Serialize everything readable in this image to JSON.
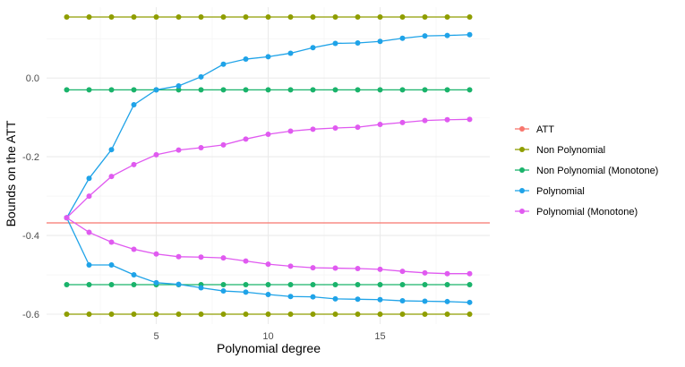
{
  "chart_data": {
    "type": "line",
    "title": "",
    "xlabel": "Polynomial degree",
    "ylabel": "Bounds on the ATT",
    "xlim": [
      0.1,
      19.9
    ],
    "ylim": [
      -0.625,
      0.18
    ],
    "x_ticks": [
      5,
      10,
      15
    ],
    "x_tick_labels": [
      "5",
      "10",
      "15"
    ],
    "y_ticks": [
      -0.6,
      -0.4,
      -0.2,
      0.0
    ],
    "y_tick_labels": [
      "-0.6",
      "-0.4",
      "-0.2",
      "0.0"
    ],
    "grid": true,
    "legend_position": "right",
    "att": {
      "name": "ATT",
      "color": "#F8766D",
      "value": -0.368
    },
    "series": [
      {
        "name": "Non Polynomial",
        "color": "#7CAE00",
        "upper": [
          0.155,
          0.155,
          0.155,
          0.155,
          0.155,
          0.155,
          0.155,
          0.155,
          0.155,
          0.155,
          0.155,
          0.155,
          0.155,
          0.155,
          0.155,
          0.155,
          0.155,
          0.155,
          0.155
        ],
        "lower": [
          -0.6,
          -0.6,
          -0.6,
          -0.6,
          -0.6,
          -0.6,
          -0.6,
          -0.6,
          -0.6,
          -0.6,
          -0.6,
          -0.6,
          -0.6,
          -0.6,
          -0.6,
          -0.6,
          -0.6,
          -0.6,
          -0.6
        ]
      },
      {
        "name": "Non Polynomial (Monotone)",
        "color": "#00BFC4",
        "upper": [
          -0.03,
          -0.03,
          -0.03,
          -0.03,
          -0.03,
          -0.03,
          -0.03,
          -0.03,
          -0.03,
          -0.03,
          -0.03,
          -0.03,
          -0.03,
          -0.03,
          -0.03,
          -0.03,
          -0.03,
          -0.03,
          -0.03
        ],
        "lower": [
          -0.525,
          -0.525,
          -0.525,
          -0.525,
          -0.525,
          -0.525,
          -0.525,
          -0.525,
          -0.525,
          -0.525,
          -0.525,
          -0.525,
          -0.525,
          -0.525,
          -0.525,
          -0.525,
          -0.525,
          -0.525,
          -0.525
        ]
      },
      {
        "name": "Polynomial",
        "color": "#1FA3E8",
        "upper": [
          -0.355,
          -0.255,
          -0.182,
          -0.068,
          -0.03,
          -0.02,
          0.003,
          0.035,
          0.048,
          0.054,
          0.063,
          0.077,
          0.088,
          0.089,
          0.093,
          0.101,
          0.107,
          0.108,
          0.11
        ],
        "lower": [
          -0.355,
          -0.475,
          -0.475,
          -0.5,
          -0.52,
          -0.524,
          -0.533,
          -0.541,
          -0.544,
          -0.55,
          -0.555,
          -0.556,
          -0.561,
          -0.562,
          -0.563,
          -0.566,
          -0.567,
          -0.568,
          -0.57
        ]
      },
      {
        "name": "Polynomial (Monotone)",
        "color": "#E05AF0",
        "upper": [
          -0.355,
          -0.3,
          -0.25,
          -0.22,
          -0.195,
          -0.183,
          -0.177,
          -0.17,
          -0.155,
          -0.143,
          -0.135,
          -0.13,
          -0.127,
          -0.125,
          -0.118,
          -0.113,
          -0.108,
          -0.106,
          -0.105
        ],
        "lower": [
          -0.355,
          -0.392,
          -0.417,
          -0.435,
          -0.447,
          -0.454,
          -0.455,
          -0.457,
          -0.465,
          -0.473,
          -0.478,
          -0.482,
          -0.483,
          -0.484,
          -0.486,
          -0.491,
          -0.495,
          -0.497,
          -0.497
        ]
      }
    ],
    "x": [
      1,
      2,
      3,
      4,
      5,
      6,
      7,
      8,
      9,
      10,
      11,
      12,
      13,
      14,
      15,
      16,
      17,
      18,
      19
    ],
    "legend": [
      {
        "name": "ATT",
        "color": "#F8766D",
        "glyph": "line"
      },
      {
        "name": "Non Polynomial",
        "color": "#8F9E00",
        "glyph": "line-point"
      },
      {
        "name": "Non Polynomial (Monotone)",
        "color": "#1AB36B",
        "glyph": "line-point"
      },
      {
        "name": "Polynomial",
        "color": "#1FA3E8",
        "glyph": "line-point"
      },
      {
        "name": "Polynomial (Monotone)",
        "color": "#E05AF0",
        "glyph": "line-point"
      }
    ]
  }
}
